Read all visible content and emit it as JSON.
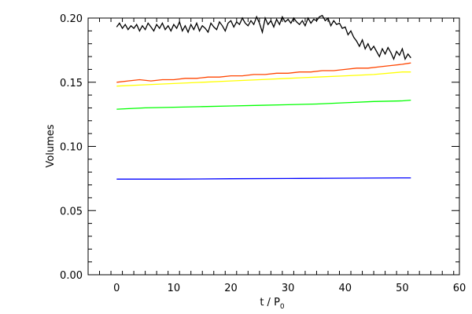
{
  "chart_data": {
    "type": "line",
    "title": "",
    "xlabel": "t / P",
    "xlabel_subscript": "0",
    "ylabel": "Volumes",
    "xlim": [
      -5,
      60
    ],
    "ylim": [
      0.0,
      0.2
    ],
    "xticks": [
      0,
      10,
      20,
      30,
      40,
      50,
      60
    ],
    "xtick_labels": [
      "0",
      "10",
      "20",
      "30",
      "40",
      "50",
      "60"
    ],
    "yticks": [
      0.0,
      0.05,
      0.1,
      0.15,
      0.2
    ],
    "ytick_labels": [
      "0.00",
      "0.05",
      "0.10",
      "0.15",
      "0.20"
    ],
    "grid": false,
    "legend": "none",
    "series": [
      {
        "color": "#000000",
        "x": [
          0,
          0.5,
          1,
          1.5,
          2,
          2.5,
          3,
          3.5,
          4,
          4.5,
          5,
          5.5,
          6,
          6.5,
          7,
          7.5,
          8,
          8.5,
          9,
          9.5,
          10,
          10.5,
          11,
          11.5,
          12,
          12.5,
          13,
          13.5,
          14,
          14.5,
          15,
          15.5,
          16,
          16.5,
          17,
          17.5,
          18,
          18.5,
          19,
          19.5,
          20,
          20.5,
          21,
          21.5,
          22,
          22.5,
          23,
          23.5,
          24,
          24.5,
          25,
          25.5,
          26,
          26.5,
          27,
          27.5,
          28,
          28.5,
          29,
          29.5,
          30,
          30.5,
          31,
          31.5,
          32,
          32.5,
          33,
          33.5,
          34,
          34.5,
          35,
          35.5,
          36,
          36.5,
          37,
          37.5,
          38,
          38.5,
          39,
          39.5,
          40,
          40.5,
          41,
          41.5,
          42,
          42.5,
          43,
          43.5,
          44,
          44.5,
          45,
          45.5,
          46,
          46.5,
          47,
          47.5,
          48,
          48.5,
          49,
          49.5,
          50,
          50.5,
          51,
          51.5
        ],
        "values": [
          0.193,
          0.196,
          0.192,
          0.195,
          0.191,
          0.194,
          0.192,
          0.195,
          0.19,
          0.194,
          0.191,
          0.196,
          0.193,
          0.19,
          0.195,
          0.192,
          0.196,
          0.191,
          0.194,
          0.19,
          0.195,
          0.192,
          0.197,
          0.19,
          0.194,
          0.189,
          0.195,
          0.191,
          0.196,
          0.19,
          0.194,
          0.192,
          0.189,
          0.196,
          0.193,
          0.191,
          0.197,
          0.194,
          0.19,
          0.196,
          0.198,
          0.193,
          0.197,
          0.195,
          0.2,
          0.196,
          0.194,
          0.198,
          0.195,
          0.201,
          0.196,
          0.189,
          0.2,
          0.195,
          0.198,
          0.193,
          0.199,
          0.195,
          0.201,
          0.197,
          0.199,
          0.196,
          0.2,
          0.197,
          0.195,
          0.198,
          0.194,
          0.2,
          0.196,
          0.199,
          0.198,
          0.201,
          0.202,
          0.198,
          0.2,
          0.194,
          0.198,
          0.195,
          0.196,
          0.192,
          0.193,
          0.187,
          0.19,
          0.185,
          0.182,
          0.178,
          0.183,
          0.176,
          0.18,
          0.175,
          0.178,
          0.174,
          0.17,
          0.176,
          0.172,
          0.177,
          0.173,
          0.168,
          0.174,
          0.171,
          0.176,
          0.168,
          0.172,
          0.169
        ]
      },
      {
        "color": "#ff4500",
        "x": [
          0,
          2,
          4,
          6,
          8,
          10,
          12,
          14,
          16,
          18,
          20,
          22,
          24,
          26,
          28,
          30,
          32,
          34,
          36,
          38,
          40,
          42,
          44,
          46,
          48,
          50,
          51.5
        ],
        "values": [
          0.15,
          0.151,
          0.152,
          0.151,
          0.152,
          0.152,
          0.153,
          0.153,
          0.154,
          0.154,
          0.155,
          0.155,
          0.156,
          0.156,
          0.157,
          0.157,
          0.158,
          0.158,
          0.159,
          0.159,
          0.16,
          0.161,
          0.161,
          0.162,
          0.163,
          0.164,
          0.165
        ]
      },
      {
        "color": "#ffff00",
        "x": [
          0,
          5,
          10,
          15,
          20,
          25,
          30,
          35,
          40,
          45,
          50,
          51.5
        ],
        "values": [
          0.147,
          0.148,
          0.149,
          0.15,
          0.151,
          0.152,
          0.153,
          0.154,
          0.155,
          0.156,
          0.158,
          0.158
        ]
      },
      {
        "color": "#00ff00",
        "x": [
          0,
          5,
          10,
          15,
          20,
          25,
          30,
          35,
          40,
          45,
          50,
          51.5
        ],
        "values": [
          0.129,
          0.13,
          0.1305,
          0.131,
          0.1315,
          0.132,
          0.1325,
          0.133,
          0.134,
          0.135,
          0.1355,
          0.136
        ]
      },
      {
        "color": "#0000ff",
        "x": [
          0,
          10,
          20,
          30,
          40,
          50,
          51.5
        ],
        "values": [
          0.0745,
          0.0745,
          0.0748,
          0.075,
          0.0752,
          0.0755,
          0.0755
        ]
      }
    ]
  }
}
